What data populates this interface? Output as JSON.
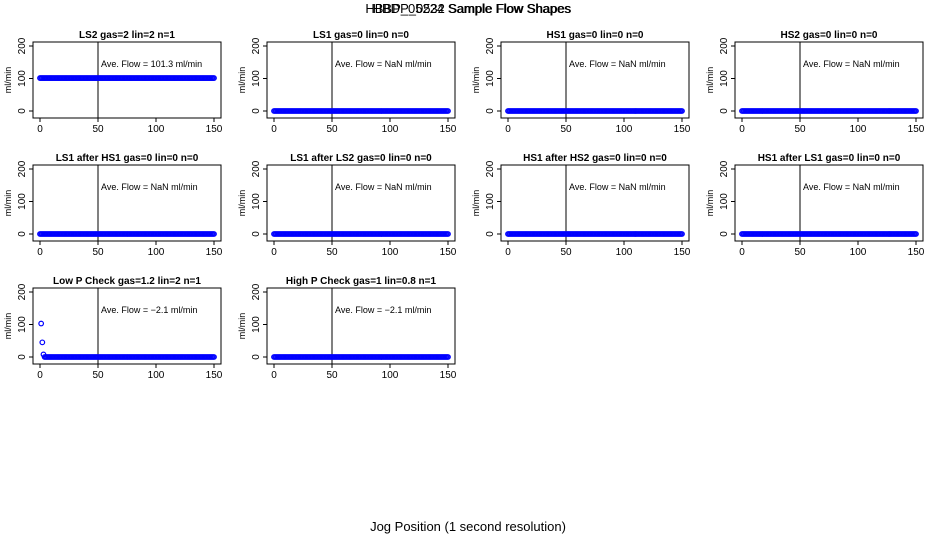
{
  "page": {
    "title_overlay_1": "HBBP_05224 Sample Flow Shapes",
    "title_overlay_2": "HBDP_0532 Sample Flow Shapes",
    "xlabel": "Jog Position (1 second resolution)"
  },
  "colors": {
    "points": "#0000ff",
    "axis": "#000000"
  },
  "chart_data": [
    {
      "type": "scatter",
      "title": "LS2 gas=2 lin=2 n=1",
      "ylabel": "ml/min",
      "annotation": "Ave. Flow =  101.3  ml/min",
      "vline": 50,
      "xlim": [
        0,
        150
      ],
      "ylim": [
        0,
        200
      ],
      "xticks": [
        0,
        50,
        100,
        150
      ],
      "yticks": [
        0,
        100,
        200
      ],
      "series": [
        {
          "x_from": 0,
          "x_to": 150,
          "y_constant": 101.3
        }
      ],
      "extra_points": []
    },
    {
      "type": "scatter",
      "title": "LS1 gas=0 lin=0 n=0",
      "ylabel": "ml/min",
      "annotation": "Ave. Flow =  NaN  ml/min",
      "vline": 50,
      "xlim": [
        0,
        150
      ],
      "ylim": [
        0,
        200
      ],
      "xticks": [
        0,
        50,
        100,
        150
      ],
      "yticks": [
        0,
        100,
        200
      ],
      "series": [
        {
          "x_from": 0,
          "x_to": 150,
          "y_constant": 0
        }
      ],
      "extra_points": []
    },
    {
      "type": "scatter",
      "title": "HS1 gas=0 lin=0 n=0",
      "ylabel": "ml/min",
      "annotation": "Ave. Flow =  NaN  ml/min",
      "vline": 50,
      "xlim": [
        0,
        150
      ],
      "ylim": [
        0,
        200
      ],
      "xticks": [
        0,
        50,
        100,
        150
      ],
      "yticks": [
        0,
        100,
        200
      ],
      "series": [
        {
          "x_from": 0,
          "x_to": 150,
          "y_constant": 0
        }
      ],
      "extra_points": []
    },
    {
      "type": "scatter",
      "title": "HS2 gas=0 lin=0 n=0",
      "ylabel": "ml/min",
      "annotation": "Ave. Flow =  NaN  ml/min",
      "vline": 50,
      "xlim": [
        0,
        150
      ],
      "ylim": [
        0,
        200
      ],
      "xticks": [
        0,
        50,
        100,
        150
      ],
      "yticks": [
        0,
        100,
        200
      ],
      "series": [
        {
          "x_from": 0,
          "x_to": 150,
          "y_constant": 0
        }
      ],
      "extra_points": []
    },
    {
      "type": "scatter",
      "title": "LS1 after HS1 gas=0 lin=0 n=0",
      "ylabel": "ml/min",
      "annotation": "Ave. Flow =  NaN  ml/min",
      "vline": 50,
      "xlim": [
        0,
        150
      ],
      "ylim": [
        0,
        200
      ],
      "xticks": [
        0,
        50,
        100,
        150
      ],
      "yticks": [
        0,
        100,
        200
      ],
      "series": [
        {
          "x_from": 0,
          "x_to": 150,
          "y_constant": 0
        }
      ],
      "extra_points": []
    },
    {
      "type": "scatter",
      "title": "LS1 after LS2 gas=0 lin=0 n=0",
      "ylabel": "ml/min",
      "annotation": "Ave. Flow =  NaN  ml/min",
      "vline": 50,
      "xlim": [
        0,
        150
      ],
      "ylim": [
        0,
        200
      ],
      "xticks": [
        0,
        50,
        100,
        150
      ],
      "yticks": [
        0,
        100,
        200
      ],
      "series": [
        {
          "x_from": 0,
          "x_to": 150,
          "y_constant": 0
        }
      ],
      "extra_points": []
    },
    {
      "type": "scatter",
      "title": "HS1 after HS2 gas=0 lin=0 n=0",
      "ylabel": "ml/min",
      "annotation": "Ave. Flow =  NaN  ml/min",
      "vline": 50,
      "xlim": [
        0,
        150
      ],
      "ylim": [
        0,
        200
      ],
      "xticks": [
        0,
        50,
        100,
        150
      ],
      "yticks": [
        0,
        100,
        200
      ],
      "series": [
        {
          "x_from": 0,
          "x_to": 150,
          "y_constant": 0
        }
      ],
      "extra_points": []
    },
    {
      "type": "scatter",
      "title": "HS1 after LS1 gas=0 lin=0 n=0",
      "ylabel": "ml/min",
      "annotation": "Ave. Flow =  NaN  ml/min",
      "vline": 50,
      "xlim": [
        0,
        150
      ],
      "ylim": [
        0,
        200
      ],
      "xticks": [
        0,
        50,
        100,
        150
      ],
      "yticks": [
        0,
        100,
        200
      ],
      "series": [
        {
          "x_from": 0,
          "x_to": 150,
          "y_constant": 0
        }
      ],
      "extra_points": []
    },
    {
      "type": "scatter",
      "title": "Low P Check gas=1.2 lin=2 n=1",
      "ylabel": "ml/min",
      "annotation": "Ave. Flow =  −2.1  ml/min",
      "vline": 50,
      "xlim": [
        0,
        150
      ],
      "ylim": [
        0,
        200
      ],
      "xticks": [
        0,
        50,
        100,
        150
      ],
      "yticks": [
        0,
        100,
        200
      ],
      "series": [
        {
          "x_from": 4,
          "x_to": 150,
          "y_constant": 0
        }
      ],
      "extra_points": [
        [
          1,
          103
        ],
        [
          2,
          45
        ],
        [
          3,
          8
        ]
      ]
    },
    {
      "type": "scatter",
      "title": "High P Check gas=1 lin=0.8 n=1",
      "ylabel": "ml/min",
      "annotation": "Ave. Flow =  −2.1  ml/min",
      "vline": 50,
      "xlim": [
        0,
        150
      ],
      "ylim": [
        0,
        200
      ],
      "xticks": [
        0,
        50,
        100,
        150
      ],
      "yticks": [
        0,
        100,
        200
      ],
      "series": [
        {
          "x_from": 0,
          "x_to": 150,
          "y_constant": 0
        }
      ],
      "extra_points": []
    }
  ]
}
